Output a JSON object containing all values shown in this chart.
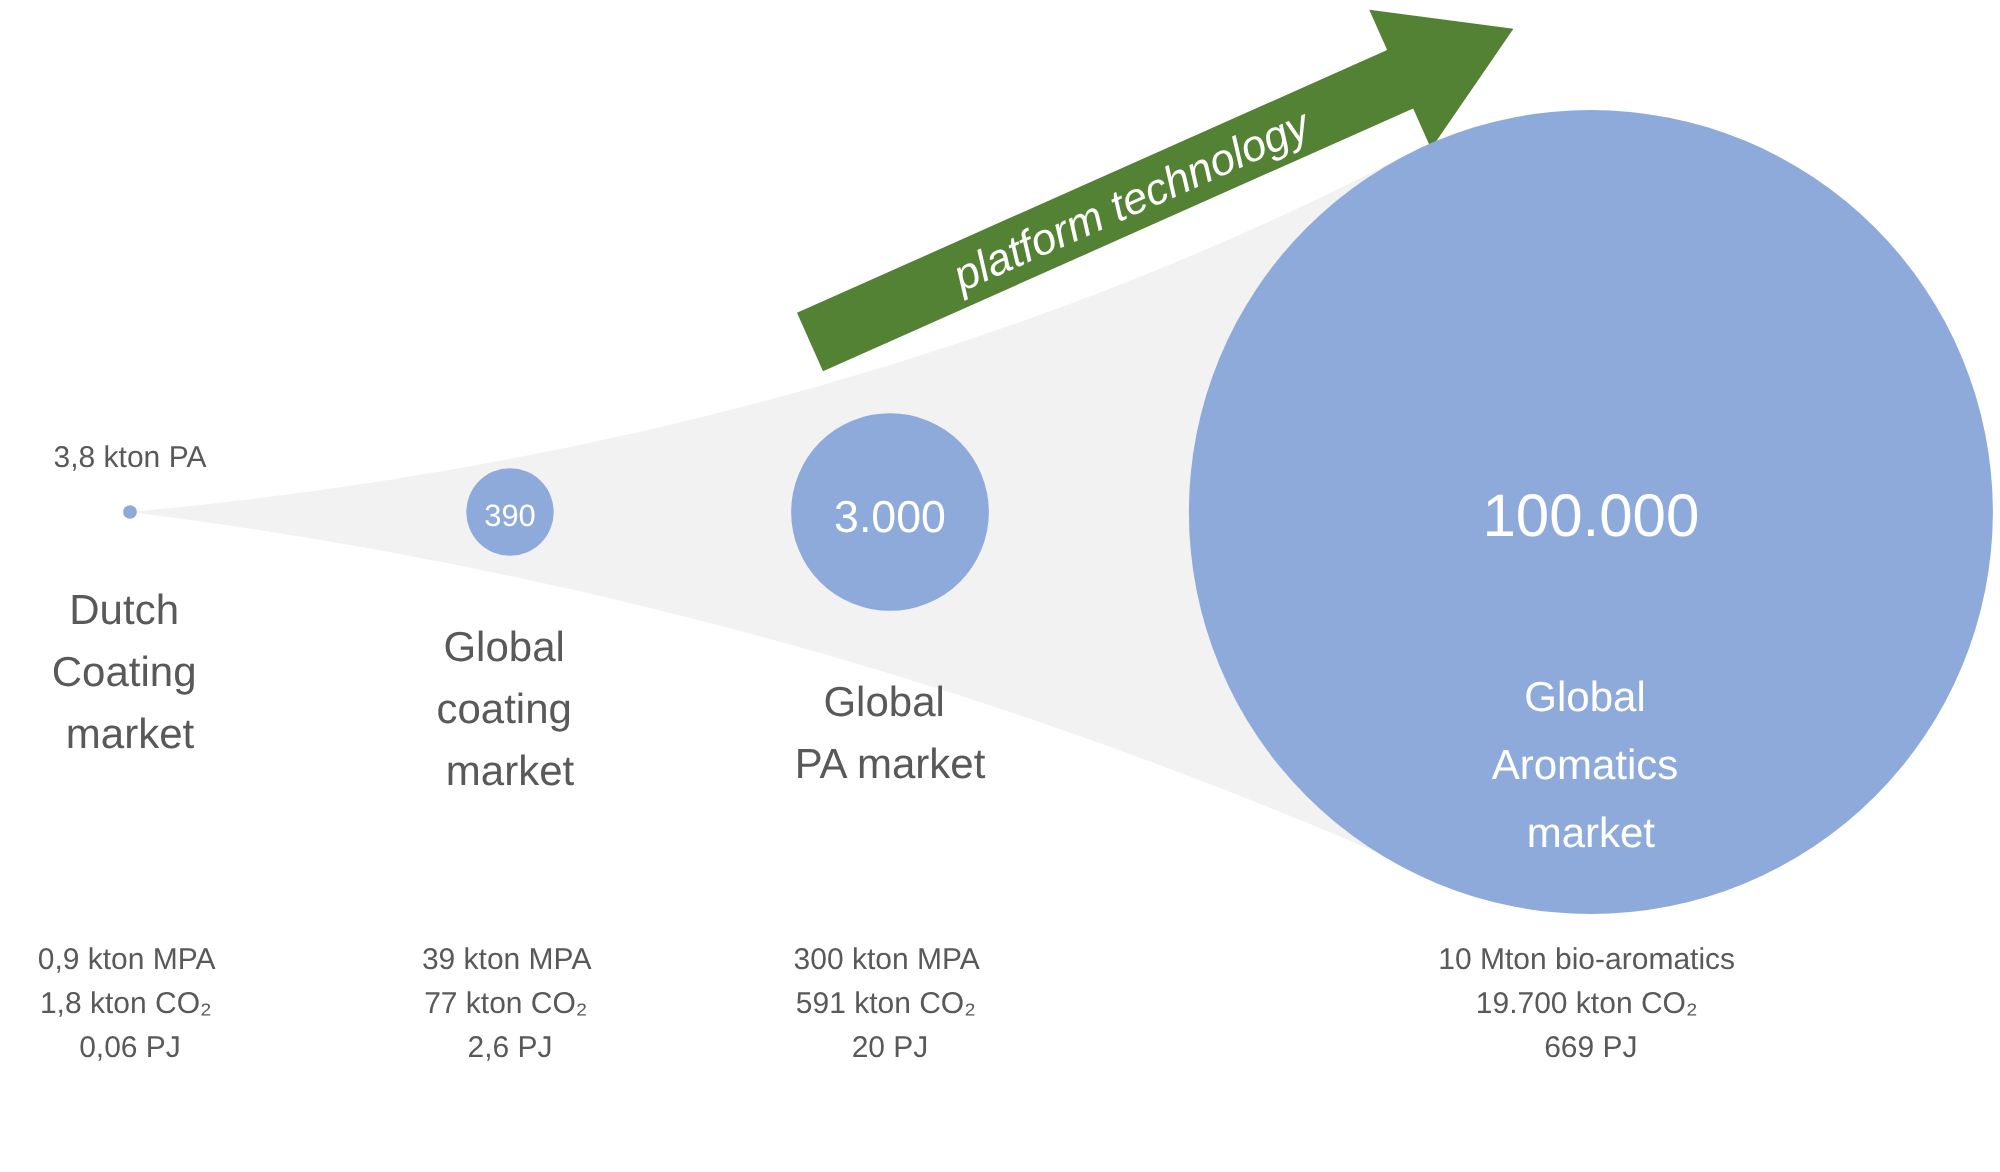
{
  "chart_data": {
    "type": "other",
    "categories": [
      "Dutch Coating market",
      "Global coating market",
      "Global PA market",
      "Global Aromatics market"
    ],
    "values": [
      3.8,
      390,
      3000,
      100000
    ],
    "value_labels": [
      "3,8 kton PA",
      "390",
      "3.000",
      "100.000"
    ],
    "colors": [
      "#8eaadb",
      "#8eaadb",
      "#8eaadb",
      "#8eaadb"
    ],
    "annotations": [
      "platform technology",
      {
        "text": "0,9 kton MPA\n1,8 kton CO₂\n0,06 PJ",
        "x": "Dutch Coating market"
      },
      {
        "text": "39 kton MPA\n77 kton CO₂\n2,6 PJ",
        "x": "Global coating market"
      },
      {
        "text": "300 kton MPA\n591 kton CO₂\n20 PJ",
        "x": "Global PA market"
      },
      {
        "text": "10 Mton bio-aromatics\n19.700 kton CO₂\n669 PJ",
        "x": "Global Aromatics market"
      }
    ]
  }
}
